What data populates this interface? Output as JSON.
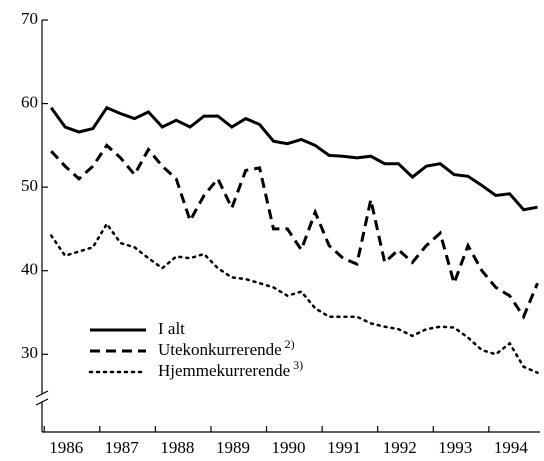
{
  "chart_data": {
    "type": "line",
    "x": [
      1986.125,
      1986.375,
      1986.625,
      1986.875,
      1987.125,
      1987.375,
      1987.625,
      1987.875,
      1988.125,
      1988.375,
      1988.625,
      1988.875,
      1989.125,
      1989.375,
      1989.625,
      1989.875,
      1990.125,
      1990.375,
      1990.625,
      1990.875,
      1991.125,
      1991.375,
      1991.625,
      1991.875,
      1992.125,
      1992.375,
      1992.625,
      1992.875,
      1993.125,
      1993.375,
      1993.625,
      1993.875,
      1994.125,
      1994.375,
      1994.625,
      1994.875
    ],
    "series": [
      {
        "name": "I alt",
        "color": "#000000",
        "dash": "solid",
        "values": [
          59.5,
          57.2,
          56.6,
          57,
          59.5,
          58.8,
          58.2,
          59,
          57.2,
          58,
          57.2,
          58.5,
          58.5,
          57.2,
          58.2,
          57.5,
          55.5,
          55.2,
          55.7,
          55,
          53.8,
          53.7,
          53.5,
          53.7,
          52.8,
          52.8,
          51.2,
          52.5,
          52.8,
          51.5,
          51.3,
          50.2,
          49,
          49.2,
          47.3,
          47.6
        ]
      },
      {
        "name": "Utekonkurrerende",
        "footnote": "2)",
        "color": "#000000",
        "dash": "dashed",
        "values": [
          54.3,
          52.5,
          51,
          52.5,
          55,
          53.5,
          51.5,
          54.5,
          52.5,
          51,
          46,
          49,
          51,
          47.5,
          52,
          52.3,
          45,
          45,
          42.5,
          47,
          43,
          41.5,
          40.8,
          48.5,
          41,
          42.5,
          41,
          43,
          44.5,
          38.5,
          43,
          40,
          38,
          37,
          34.5,
          38.5
        ]
      },
      {
        "name": "Hjemmekurrerende",
        "footnote": "3)",
        "color": "#000000",
        "dash": "dotted",
        "values": [
          44.2,
          41.8,
          42.3,
          42.8,
          45.6,
          43.3,
          42.8,
          41.5,
          40.3,
          41.7,
          41.5,
          42,
          40.3,
          39.2,
          39,
          38.5,
          38,
          37,
          37.5,
          35.5,
          34.5,
          34.5,
          34.5,
          33.7,
          33.3,
          33,
          32.2,
          33,
          33.3,
          33.2,
          32,
          30.5,
          30,
          31.3,
          28.5,
          27.8
        ]
      }
    ],
    "xlim": [
      1985.96,
      1994.92
    ],
    "xticks": [
      1986,
      1987,
      1988,
      1989,
      1990,
      1991,
      1992,
      1993,
      1994
    ],
    "ylim": [
      20.7,
      70
    ],
    "yticks": [
      30,
      40,
      50,
      60,
      70
    ],
    "axis_break": true,
    "legend": "lower left"
  }
}
